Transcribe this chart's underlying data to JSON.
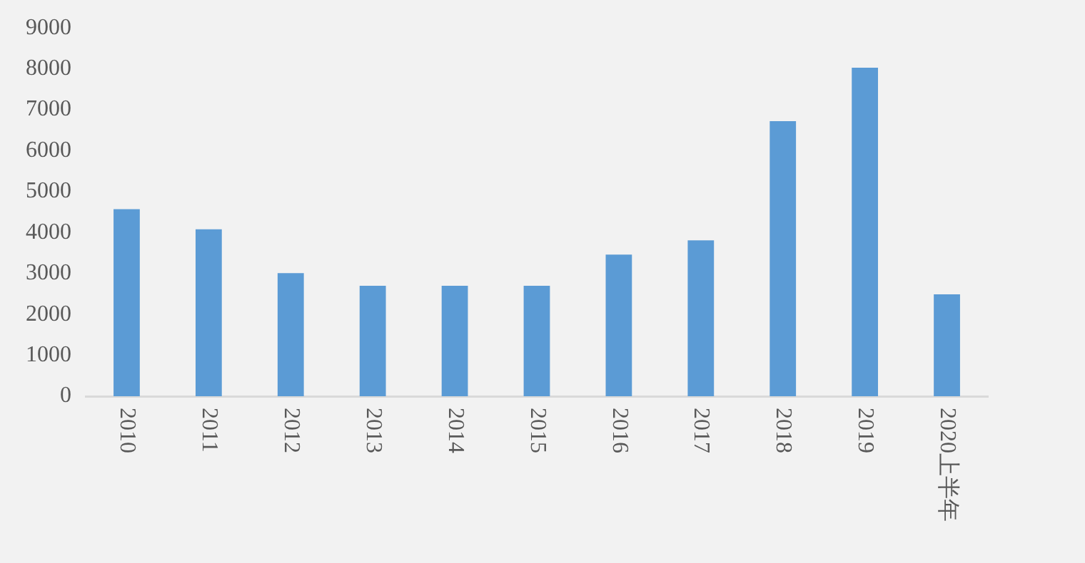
{
  "chart_data": {
    "type": "bar",
    "categories": [
      "2010",
      "2011",
      "2012",
      "2013",
      "2014",
      "2015",
      "2016",
      "2017",
      "2018",
      "2019",
      "2020上半年"
    ],
    "values": [
      4570,
      4080,
      3010,
      2700,
      2700,
      2700,
      3460,
      3810,
      6720,
      8030,
      2490
    ],
    "color": "#5b9bd5",
    "ylim": [
      0,
      9000
    ],
    "yticks": [
      0,
      1000,
      2000,
      3000,
      4000,
      5000,
      6000,
      7000,
      8000,
      9000
    ],
    "grid": false,
    "legend": false
  }
}
